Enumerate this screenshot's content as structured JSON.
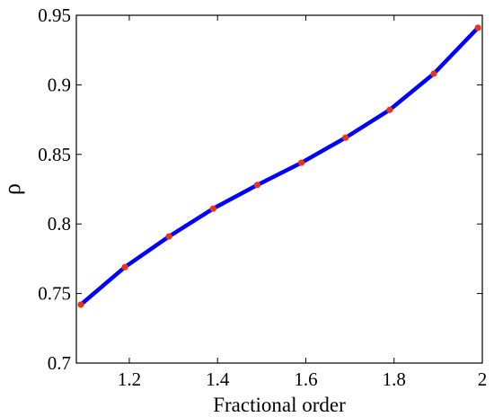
{
  "chart_data": {
    "type": "line",
    "title": "",
    "xlabel": "Fractional order",
    "ylabel": "ρ",
    "xlim": [
      1.08,
      2.0
    ],
    "ylim": [
      0.7,
      0.95
    ],
    "xticks": [
      1.2,
      1.4,
      1.6,
      1.8,
      2.0
    ],
    "xtick_labels": [
      "1.2",
      "1.4",
      "1.6",
      "1.8",
      "2"
    ],
    "yticks": [
      0.7,
      0.75,
      0.8,
      0.85,
      0.9,
      0.95
    ],
    "ytick_labels": [
      "0.7",
      "0.75",
      "0.8",
      "0.85",
      "0.9",
      "0.95"
    ],
    "grid": false,
    "series": [
      {
        "line_color": "#0000ff",
        "marker_color": "#e8341c",
        "x": [
          1.09,
          1.19,
          1.29,
          1.39,
          1.49,
          1.59,
          1.69,
          1.79,
          1.89,
          1.99
        ],
        "y": [
          0.742,
          0.769,
          0.791,
          0.811,
          0.828,
          0.844,
          0.862,
          0.882,
          0.908,
          0.941
        ]
      }
    ]
  }
}
